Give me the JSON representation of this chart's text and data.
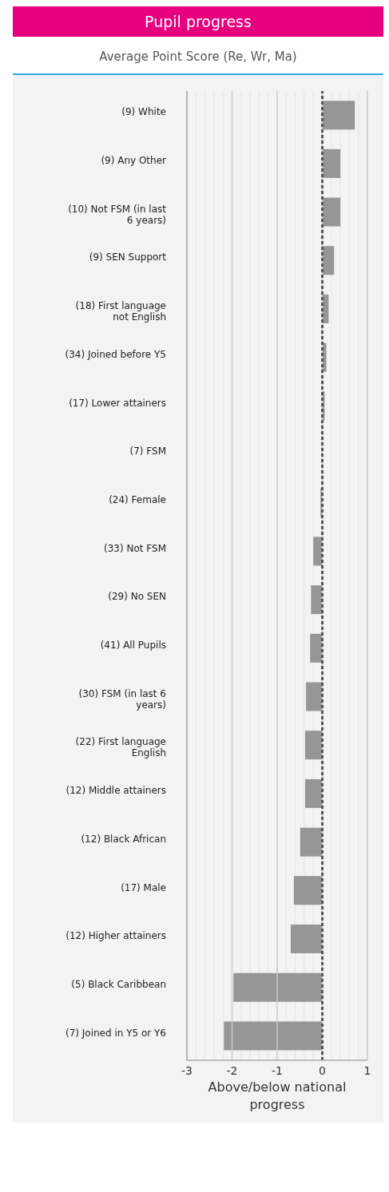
{
  "chart_data": {
    "type": "bar",
    "orientation": "horizontal",
    "title": "Pupil progress",
    "subtitle": "Average Point Score (Re, Wr, Ma)",
    "xlabel": "Above/below national progress",
    "categories": [
      "(9) White",
      "(9) Any Other",
      "(10) Not FSM (in last 6 years)",
      "(9) SEN Support",
      "(18) First language not English",
      "(34) Joined before Y5",
      "(17) Lower attainers",
      "(7) FSM",
      "(24) Female",
      "(33) Not FSM",
      "(29) No SEN",
      "(41) All Pupils",
      "(30) FSM (in last 6 years)",
      "(22) First language English",
      "(12) Middle attainers",
      "(12) Black African",
      "(17) Male",
      "(12) Higher attainers",
      "(5) Black Caribbean",
      "(7) Joined in Y5 or Y6"
    ],
    "values": [
      0.72,
      0.4,
      0.4,
      0.26,
      0.14,
      0.09,
      0.05,
      0,
      -0.04,
      -0.2,
      -0.25,
      -0.27,
      -0.36,
      -0.38,
      -0.38,
      -0.49,
      -0.63,
      -0.7,
      -1.97,
      -2.18
    ],
    "color": "#969696",
    "xlim": [
      -3,
      1
    ],
    "xticks": [
      -3,
      {
        "value": -2.8,
        "label": null
      },
      {
        "value": -2.6,
        "label": null
      },
      {
        "value": -2.4,
        "label": null
      },
      {
        "value": -2.2,
        "label": null
      },
      -2,
      {
        "value": -1.8,
        "label": null
      },
      {
        "value": -1.6,
        "label": null
      },
      {
        "value": -1.4,
        "label": null
      },
      {
        "value": -1.2,
        "label": null
      },
      -1,
      {
        "value": -0.8,
        "label": null
      },
      {
        "value": -0.6,
        "label": null
      },
      {
        "value": -0.4,
        "label": null
      },
      {
        "value": -0.2,
        "label": null
      },
      0,
      {
        "value": 0.2,
        "label": null
      },
      {
        "value": 0.4,
        "label": null
      },
      {
        "value": 0.6,
        "label": null
      },
      {
        "value": 0.8,
        "label": null
      },
      1
    ],
    "grid": "x",
    "ref_lines": [
      {
        "axis": "x",
        "value": 0,
        "color": "#555555",
        "line_style": "dashed"
      }
    ]
  }
}
